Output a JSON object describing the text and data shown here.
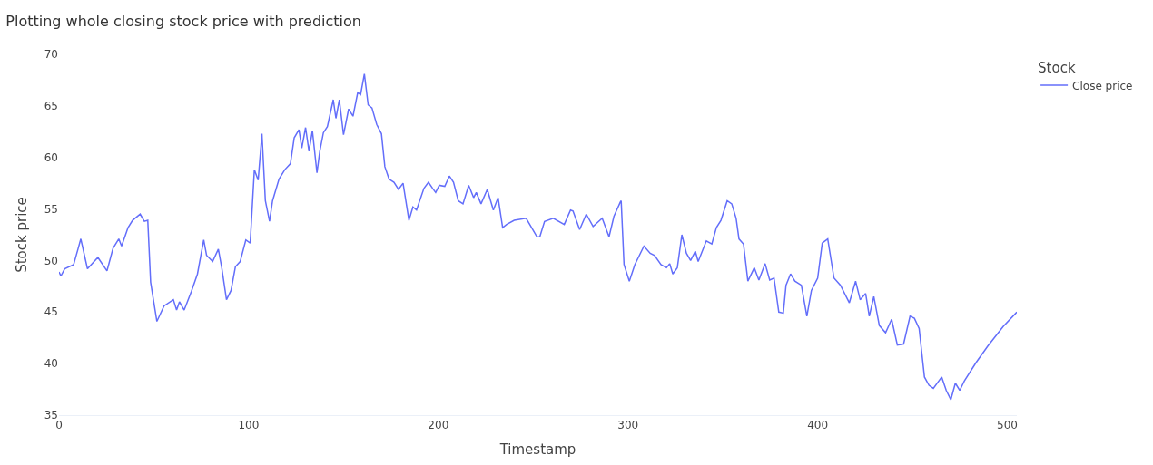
{
  "chart_data": {
    "type": "line",
    "title": "Plotting whole closing stock price with prediction",
    "xlabel": "Timestamp",
    "ylabel": "Stock price",
    "legend_title": "Stock",
    "legend": "top right",
    "marker": "none",
    "line_style": "solid",
    "xlim": [
      0,
      505
    ],
    "xticks": [
      0,
      100,
      200,
      300,
      400,
      500
    ],
    "ylim": [
      35,
      70
    ],
    "yticks": [
      35,
      40,
      45,
      50,
      55,
      60,
      65,
      70
    ],
    "series": [
      {
        "name": "Close price",
        "color": "#636efa",
        "x": [
          0,
          1,
          3,
          7.7,
          10,
          11.5,
          15,
          20.5,
          25.3,
          28.5,
          31.5,
          33,
          36.4,
          38.8,
          42.8,
          45,
          46.8,
          48.3,
          51.6,
          55.4,
          60.3,
          62,
          63.5,
          66,
          69.8,
          73,
          76.3,
          77.8,
          81,
          84,
          85.8,
          88.3,
          90.7,
          93,
          95.5,
          98.5,
          100.8,
          103,
          105,
          107,
          108.8,
          111,
          112.6,
          116,
          119,
          122,
          124,
          126.5,
          128,
          130,
          131.8,
          133.6,
          136,
          137.5,
          139.4,
          141.5,
          144.6,
          146,
          147.8,
          150,
          152.7,
          155,
          157.5,
          159,
          161,
          163,
          165,
          167.5,
          170,
          171.8,
          174,
          176.6,
          179,
          181.4,
          184.5,
          186.6,
          188.5,
          192.4,
          194.8,
          197,
          198.6,
          200.5,
          203.4,
          205.8,
          208,
          210.5,
          213,
          216,
          218.6,
          220,
          222.5,
          225.8,
          229,
          231.5,
          233.9,
          236,
          240,
          246.3,
          252,
          253.5,
          256,
          260.6,
          266.4,
          269.7,
          271,
          274.5,
          278,
          281.6,
          286.4,
          290,
          292.6,
          296,
          296.4,
          297.9,
          300.7,
          303.6,
          308.4,
          311.7,
          314,
          317.4,
          320.3,
          322,
          323.6,
          326,
          328.4,
          330.8,
          333,
          335.5,
          337,
          341.3,
          344.2,
          346.6,
          349,
          352.3,
          354.7,
          357,
          358.5,
          360.9,
          363.2,
          366.6,
          369,
          372.3,
          374.7,
          377,
          379.5,
          381.9,
          383.3,
          385.7,
          388,
          391.4,
          394.3,
          396.7,
          400,
          402.4,
          405.3,
          408.6,
          412,
          416.7,
          420,
          422.4,
          425.3,
          427.2,
          429.6,
          432.5,
          435.8,
          439,
          442,
          445.3,
          448.7,
          451,
          453.5,
          456.3,
          458.7,
          461,
          465.4,
          467.8,
          470.2,
          472.6,
          474.9,
          477.3,
          483.5,
          489.7,
          497.8,
          505
        ],
        "values": [
          48.9,
          48.5,
          49.2,
          49.6,
          51.1,
          52.1,
          49.2,
          50.3,
          49.0,
          51.2,
          52.1,
          51.4,
          53.2,
          53.9,
          54.5,
          53.8,
          53.9,
          47.9,
          44.1,
          45.6,
          46.2,
          45.2,
          46.0,
          45.2,
          47.0,
          48.7,
          52.0,
          50.5,
          49.9,
          51.1,
          49.3,
          46.2,
          47.1,
          49.4,
          49.9,
          52.0,
          51.7,
          58.8,
          57.8,
          62.3,
          55.8,
          53.8,
          55.8,
          57.9,
          58.8,
          59.4,
          61.9,
          62.7,
          60.9,
          62.9,
          60.6,
          62.6,
          58.5,
          60.6,
          62.4,
          63.0,
          65.6,
          63.8,
          65.6,
          62.2,
          64.7,
          64.0,
          66.3,
          66.1,
          68.1,
          65.1,
          64.8,
          63.2,
          62.3,
          59.1,
          57.9,
          57.6,
          56.9,
          57.5,
          53.9,
          55.2,
          54.9,
          57.0,
          57.6,
          57.0,
          56.6,
          57.3,
          57.2,
          58.2,
          57.6,
          55.8,
          55.5,
          57.3,
          56.1,
          56.6,
          55.5,
          56.9,
          54.9,
          56.1,
          53.2,
          53.5,
          53.9,
          54.1,
          52.3,
          52.3,
          53.8,
          54.1,
          53.5,
          54.9,
          54.8,
          53.0,
          54.5,
          53.3,
          54.1,
          52.3,
          54.3,
          55.7,
          55.8,
          49.6,
          48.0,
          49.6,
          51.4,
          50.7,
          50.5,
          49.6,
          49.3,
          49.7,
          48.7,
          49.3,
          52.5,
          50.7,
          50.0,
          50.9,
          49.9,
          51.9,
          51.6,
          53.2,
          53.9,
          55.8,
          55.5,
          54.1,
          52.1,
          51.6,
          48.0,
          49.3,
          48.1,
          49.7,
          48.1,
          48.3,
          45.0,
          44.9,
          47.6,
          48.7,
          48.0,
          47.6,
          44.6,
          47.1,
          48.3,
          51.7,
          52.1,
          48.3,
          47.6,
          45.9,
          48.0,
          46.2,
          46.8,
          44.6,
          46.5,
          43.7,
          43.0,
          44.3,
          41.8,
          41.9,
          44.6,
          44.4,
          43.4,
          38.7,
          37.9,
          37.6,
          38.7,
          37.4,
          36.5,
          38.1,
          37.4,
          38.3,
          40.1,
          41.7,
          43.6,
          45.0
        ]
      }
    ]
  }
}
